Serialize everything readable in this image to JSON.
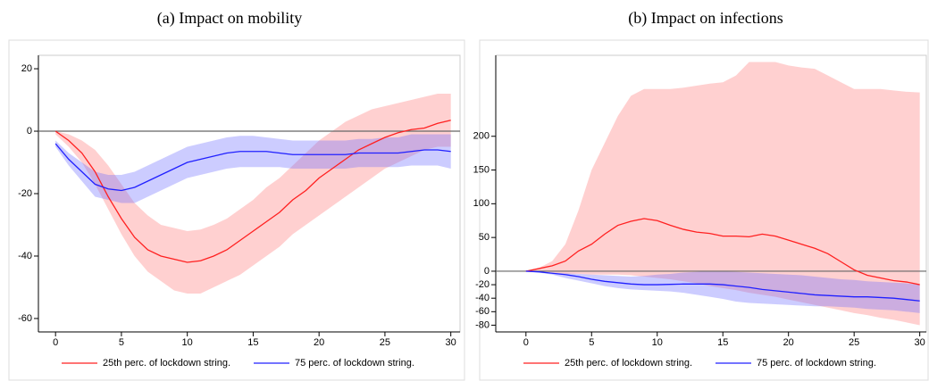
{
  "chart_data": [
    {
      "type": "line",
      "title": "(a) Impact on mobility",
      "x": [
        0,
        1,
        2,
        3,
        4,
        5,
        6,
        7,
        8,
        9,
        10,
        11,
        12,
        13,
        14,
        15,
        16,
        17,
        18,
        19,
        20,
        21,
        22,
        23,
        24,
        25,
        26,
        27,
        28,
        29,
        30
      ],
      "xlim": [
        -1.3,
        30.7
      ],
      "xticks": [
        0,
        5,
        10,
        15,
        20,
        25,
        30
      ],
      "ylim": [
        -64.3,
        24.3
      ],
      "yticks": [
        20,
        0,
        -20,
        -40,
        -60
      ],
      "reference_line": 0,
      "series": [
        {
          "name": "25th perc. of lockdown string.",
          "color": "#ff2020",
          "band_color": "rgba(255,120,120,0.35)",
          "values": [
            0,
            -3,
            -7,
            -13,
            -21,
            -28,
            -34,
            -38,
            -40,
            -41,
            -42,
            -41.5,
            -40,
            -38,
            -35,
            -32,
            -29,
            -26,
            -22,
            -19,
            -15,
            -12,
            -9,
            -6,
            -4,
            -2,
            -0.5,
            0.5,
            1,
            2.5,
            3.5
          ],
          "upper": [
            0,
            -1,
            -3,
            -6,
            -11,
            -17,
            -23,
            -27,
            -30,
            -31,
            -32,
            -31.5,
            -30,
            -28,
            -25,
            -22,
            -18,
            -15,
            -11,
            -7,
            -3,
            0,
            3,
            5,
            7,
            8,
            9,
            10,
            11,
            12,
            12
          ],
          "lower": [
            -1,
            -5,
            -10,
            -17,
            -25,
            -33,
            -40,
            -45,
            -48,
            -51,
            -52,
            -52,
            -50,
            -48,
            -46,
            -43,
            -40,
            -37,
            -33,
            -30,
            -27,
            -24,
            -21,
            -18,
            -15,
            -12,
            -10,
            -8,
            -6,
            -5,
            -5
          ]
        },
        {
          "name": "75 perc. of lockdown string.",
          "color": "#2020ff",
          "band_color": "rgba(110,110,255,0.35)",
          "values": [
            -4,
            -9,
            -13,
            -17,
            -18.5,
            -19,
            -18,
            -16,
            -14,
            -12,
            -10,
            -9,
            -8,
            -7,
            -6.5,
            -6.5,
            -6.5,
            -7,
            -7.5,
            -7.5,
            -7.5,
            -7.5,
            -7.5,
            -7,
            -7,
            -7,
            -7,
            -6.5,
            -6,
            -6,
            -6.5
          ],
          "upper": [
            -3,
            -7,
            -10,
            -13,
            -14,
            -14,
            -13,
            -11,
            -9,
            -7,
            -5,
            -4,
            -3,
            -2,
            -1.5,
            -1.5,
            -2,
            -2.5,
            -3,
            -3,
            -3,
            -3,
            -3,
            -2.5,
            -2.5,
            -2,
            -2,
            -1,
            -1,
            -1,
            -1
          ],
          "lower": [
            -5,
            -11,
            -16,
            -21,
            -22,
            -23,
            -23,
            -21,
            -19,
            -17,
            -15,
            -14,
            -13,
            -12,
            -11.5,
            -11.5,
            -11.5,
            -11.5,
            -12,
            -12,
            -12,
            -12,
            -12,
            -11.5,
            -11.5,
            -11.5,
            -11.5,
            -11,
            -11,
            -11,
            -12
          ]
        }
      ]
    },
    {
      "type": "line",
      "title": "(b) Impact on infections",
      "x": [
        0,
        1,
        2,
        3,
        4,
        5,
        6,
        7,
        8,
        9,
        10,
        11,
        12,
        13,
        14,
        15,
        16,
        17,
        18,
        19,
        20,
        21,
        22,
        23,
        24,
        25,
        26,
        27,
        28,
        29,
        30
      ],
      "xlim": [
        -2.3,
        30.5
      ],
      "xticks": [
        0,
        5,
        10,
        15,
        20,
        25,
        30
      ],
      "ylim": [
        -90,
        320
      ],
      "yticks": [
        200,
        150,
        100,
        50,
        0,
        -20,
        -40,
        -60,
        -80
      ],
      "reference_line": 0,
      "series": [
        {
          "name": "25th perc. of lockdown string.",
          "color": "#ff2020",
          "band_color": "rgba(255,120,120,0.35)",
          "values": [
            0,
            4,
            8,
            15,
            30,
            40,
            55,
            68,
            74,
            78,
            75,
            68,
            62,
            58,
            56,
            52,
            52,
            51,
            55,
            52,
            46,
            40,
            34,
            26,
            14,
            2,
            -6,
            -10,
            -14,
            -16,
            -20
          ],
          "upper": [
            0,
            5,
            15,
            40,
            90,
            150,
            190,
            230,
            260,
            270,
            270,
            270,
            272,
            275,
            278,
            280,
            290,
            310,
            310,
            310,
            305,
            302,
            300,
            290,
            280,
            270,
            270,
            270,
            268,
            266,
            265
          ],
          "lower": [
            0,
            0,
            -2,
            -4,
            -4,
            -5,
            -5,
            -5,
            -6,
            -8,
            -10,
            -12,
            -15,
            -18,
            -22,
            -25,
            -28,
            -32,
            -35,
            -38,
            -42,
            -46,
            -50,
            -54,
            -58,
            -62,
            -65,
            -69,
            -72,
            -76,
            -80
          ]
        },
        {
          "name": "75 perc. of lockdown string.",
          "color": "#2020ff",
          "band_color": "rgba(110,110,255,0.35)",
          "values": [
            0,
            -1,
            -3,
            -5,
            -8,
            -12,
            -15,
            -17,
            -19,
            -20,
            -20,
            -19.5,
            -19,
            -19,
            -19,
            -20,
            -22,
            -24,
            -27,
            -29,
            -31,
            -33,
            -35,
            -36,
            -37,
            -38,
            -38,
            -39,
            -40,
            -42,
            -44
          ],
          "upper": [
            0,
            -1,
            -2,
            -3,
            -4,
            -5,
            -6,
            -7,
            -8,
            -7,
            -5,
            -4,
            -2,
            -1,
            0,
            -0.5,
            -1,
            -2,
            -3,
            -4,
            -5,
            -6,
            -8,
            -10,
            -12,
            -13,
            -15,
            -16,
            -17,
            -18,
            -20
          ],
          "lower": [
            0,
            -2,
            -5,
            -10,
            -14,
            -18,
            -22,
            -25,
            -27,
            -28,
            -29,
            -30,
            -32,
            -35,
            -38,
            -41,
            -45,
            -47,
            -48,
            -49,
            -50,
            -51,
            -52,
            -52,
            -53,
            -54,
            -56,
            -57,
            -58,
            -60,
            -62
          ]
        }
      ]
    }
  ]
}
